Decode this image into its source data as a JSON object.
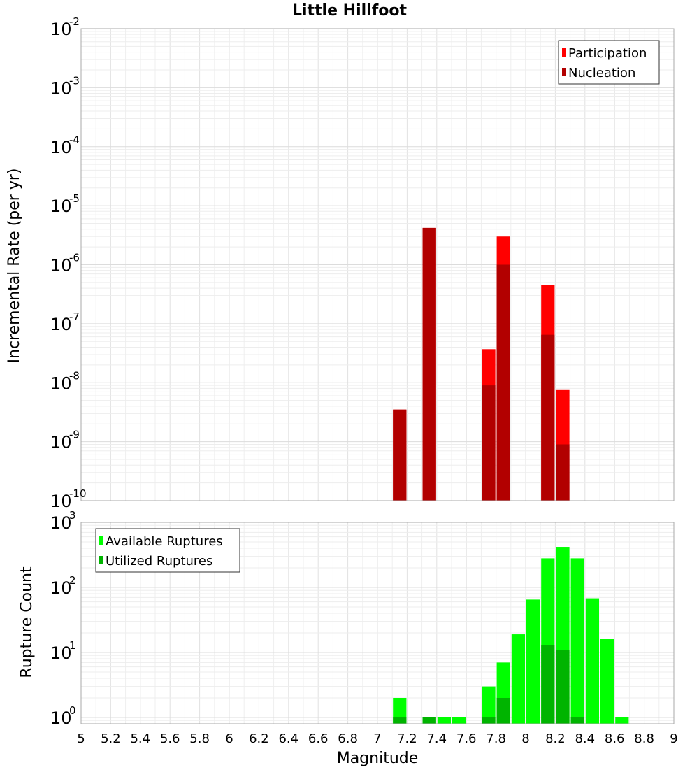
{
  "chart_data": [
    {
      "type": "bar",
      "title": "Little Hillfoot",
      "xlabel": "",
      "ylabel": "Incremental Rate (per yr)",
      "yscale": "log",
      "ylim": [
        1e-10,
        0.01
      ],
      "xlim": [
        5,
        9
      ],
      "bin_width": 0.1,
      "legend_position": "top-right",
      "y_ticks": [
        {
          "base": "10",
          "exp": "-10"
        },
        {
          "base": "10",
          "exp": "-9"
        },
        {
          "base": "10",
          "exp": "-8"
        },
        {
          "base": "10",
          "exp": "-7"
        },
        {
          "base": "10",
          "exp": "-6"
        },
        {
          "base": "10",
          "exp": "-5"
        },
        {
          "base": "10",
          "exp": "-4"
        },
        {
          "base": "10",
          "exp": "-3"
        },
        {
          "base": "10",
          "exp": "-2"
        }
      ],
      "series": [
        {
          "name": "Participation",
          "color": "#ff0000",
          "points": [
            {
              "x": 7.15,
              "y": 3.5e-09
            },
            {
              "x": 7.35,
              "y": 4.2e-06
            },
            {
              "x": 7.75,
              "y": 3.7e-08
            },
            {
              "x": 7.85,
              "y": 3e-06
            },
            {
              "x": 8.15,
              "y": 4.5e-07
            },
            {
              "x": 8.25,
              "y": 7.5e-09
            }
          ]
        },
        {
          "name": "Nucleation",
          "color": "#b20000",
          "points": [
            {
              "x": 7.15,
              "y": 3.5e-09
            },
            {
              "x": 7.35,
              "y": 4.2e-06
            },
            {
              "x": 7.75,
              "y": 9e-09
            },
            {
              "x": 7.85,
              "y": 1e-06
            },
            {
              "x": 8.15,
              "y": 6.5e-08
            },
            {
              "x": 8.25,
              "y": 9e-10
            }
          ]
        }
      ]
    },
    {
      "type": "bar",
      "title": "",
      "xlabel": "Magnitude",
      "ylabel": "Rupture Count",
      "yscale": "log",
      "ylim": [
        0.8,
        1000
      ],
      "xlim": [
        5,
        9
      ],
      "bin_width": 0.1,
      "legend_position": "top-left",
      "x_ticks": [
        "5",
        "5.2",
        "5.4",
        "5.6",
        "5.8",
        "6",
        "6.2",
        "6.4",
        "6.6",
        "6.8",
        "7",
        "7.2",
        "7.4",
        "7.6",
        "7.8",
        "8",
        "8.2",
        "8.4",
        "8.6",
        "8.8",
        "9"
      ],
      "y_ticks": [
        {
          "value": 1,
          "base": "10",
          "exp": "0"
        },
        {
          "value": 10,
          "base": "10",
          "exp": "1"
        },
        {
          "value": 100,
          "base": "10",
          "exp": "2"
        },
        {
          "value": 1000,
          "base": "10",
          "exp": "3"
        }
      ],
      "series": [
        {
          "name": "Available Ruptures",
          "color": "#00ff00",
          "points": [
            {
              "x": 7.15,
              "y": 2
            },
            {
              "x": 7.35,
              "y": 1
            },
            {
              "x": 7.45,
              "y": 1
            },
            {
              "x": 7.55,
              "y": 1
            },
            {
              "x": 7.75,
              "y": 3
            },
            {
              "x": 7.85,
              "y": 7
            },
            {
              "x": 7.95,
              "y": 19
            },
            {
              "x": 8.05,
              "y": 65
            },
            {
              "x": 8.15,
              "y": 280
            },
            {
              "x": 8.25,
              "y": 420
            },
            {
              "x": 8.35,
              "y": 280
            },
            {
              "x": 8.45,
              "y": 68
            },
            {
              "x": 8.55,
              "y": 16
            },
            {
              "x": 8.65,
              "y": 1
            }
          ]
        },
        {
          "name": "Utilized Ruptures",
          "color": "#00b400",
          "points": [
            {
              "x": 7.15,
              "y": 1
            },
            {
              "x": 7.35,
              "y": 1
            },
            {
              "x": 7.75,
              "y": 1
            },
            {
              "x": 7.85,
              "y": 2
            },
            {
              "x": 8.15,
              "y": 13
            },
            {
              "x": 8.25,
              "y": 11
            },
            {
              "x": 8.35,
              "y": 1
            }
          ]
        }
      ]
    }
  ]
}
